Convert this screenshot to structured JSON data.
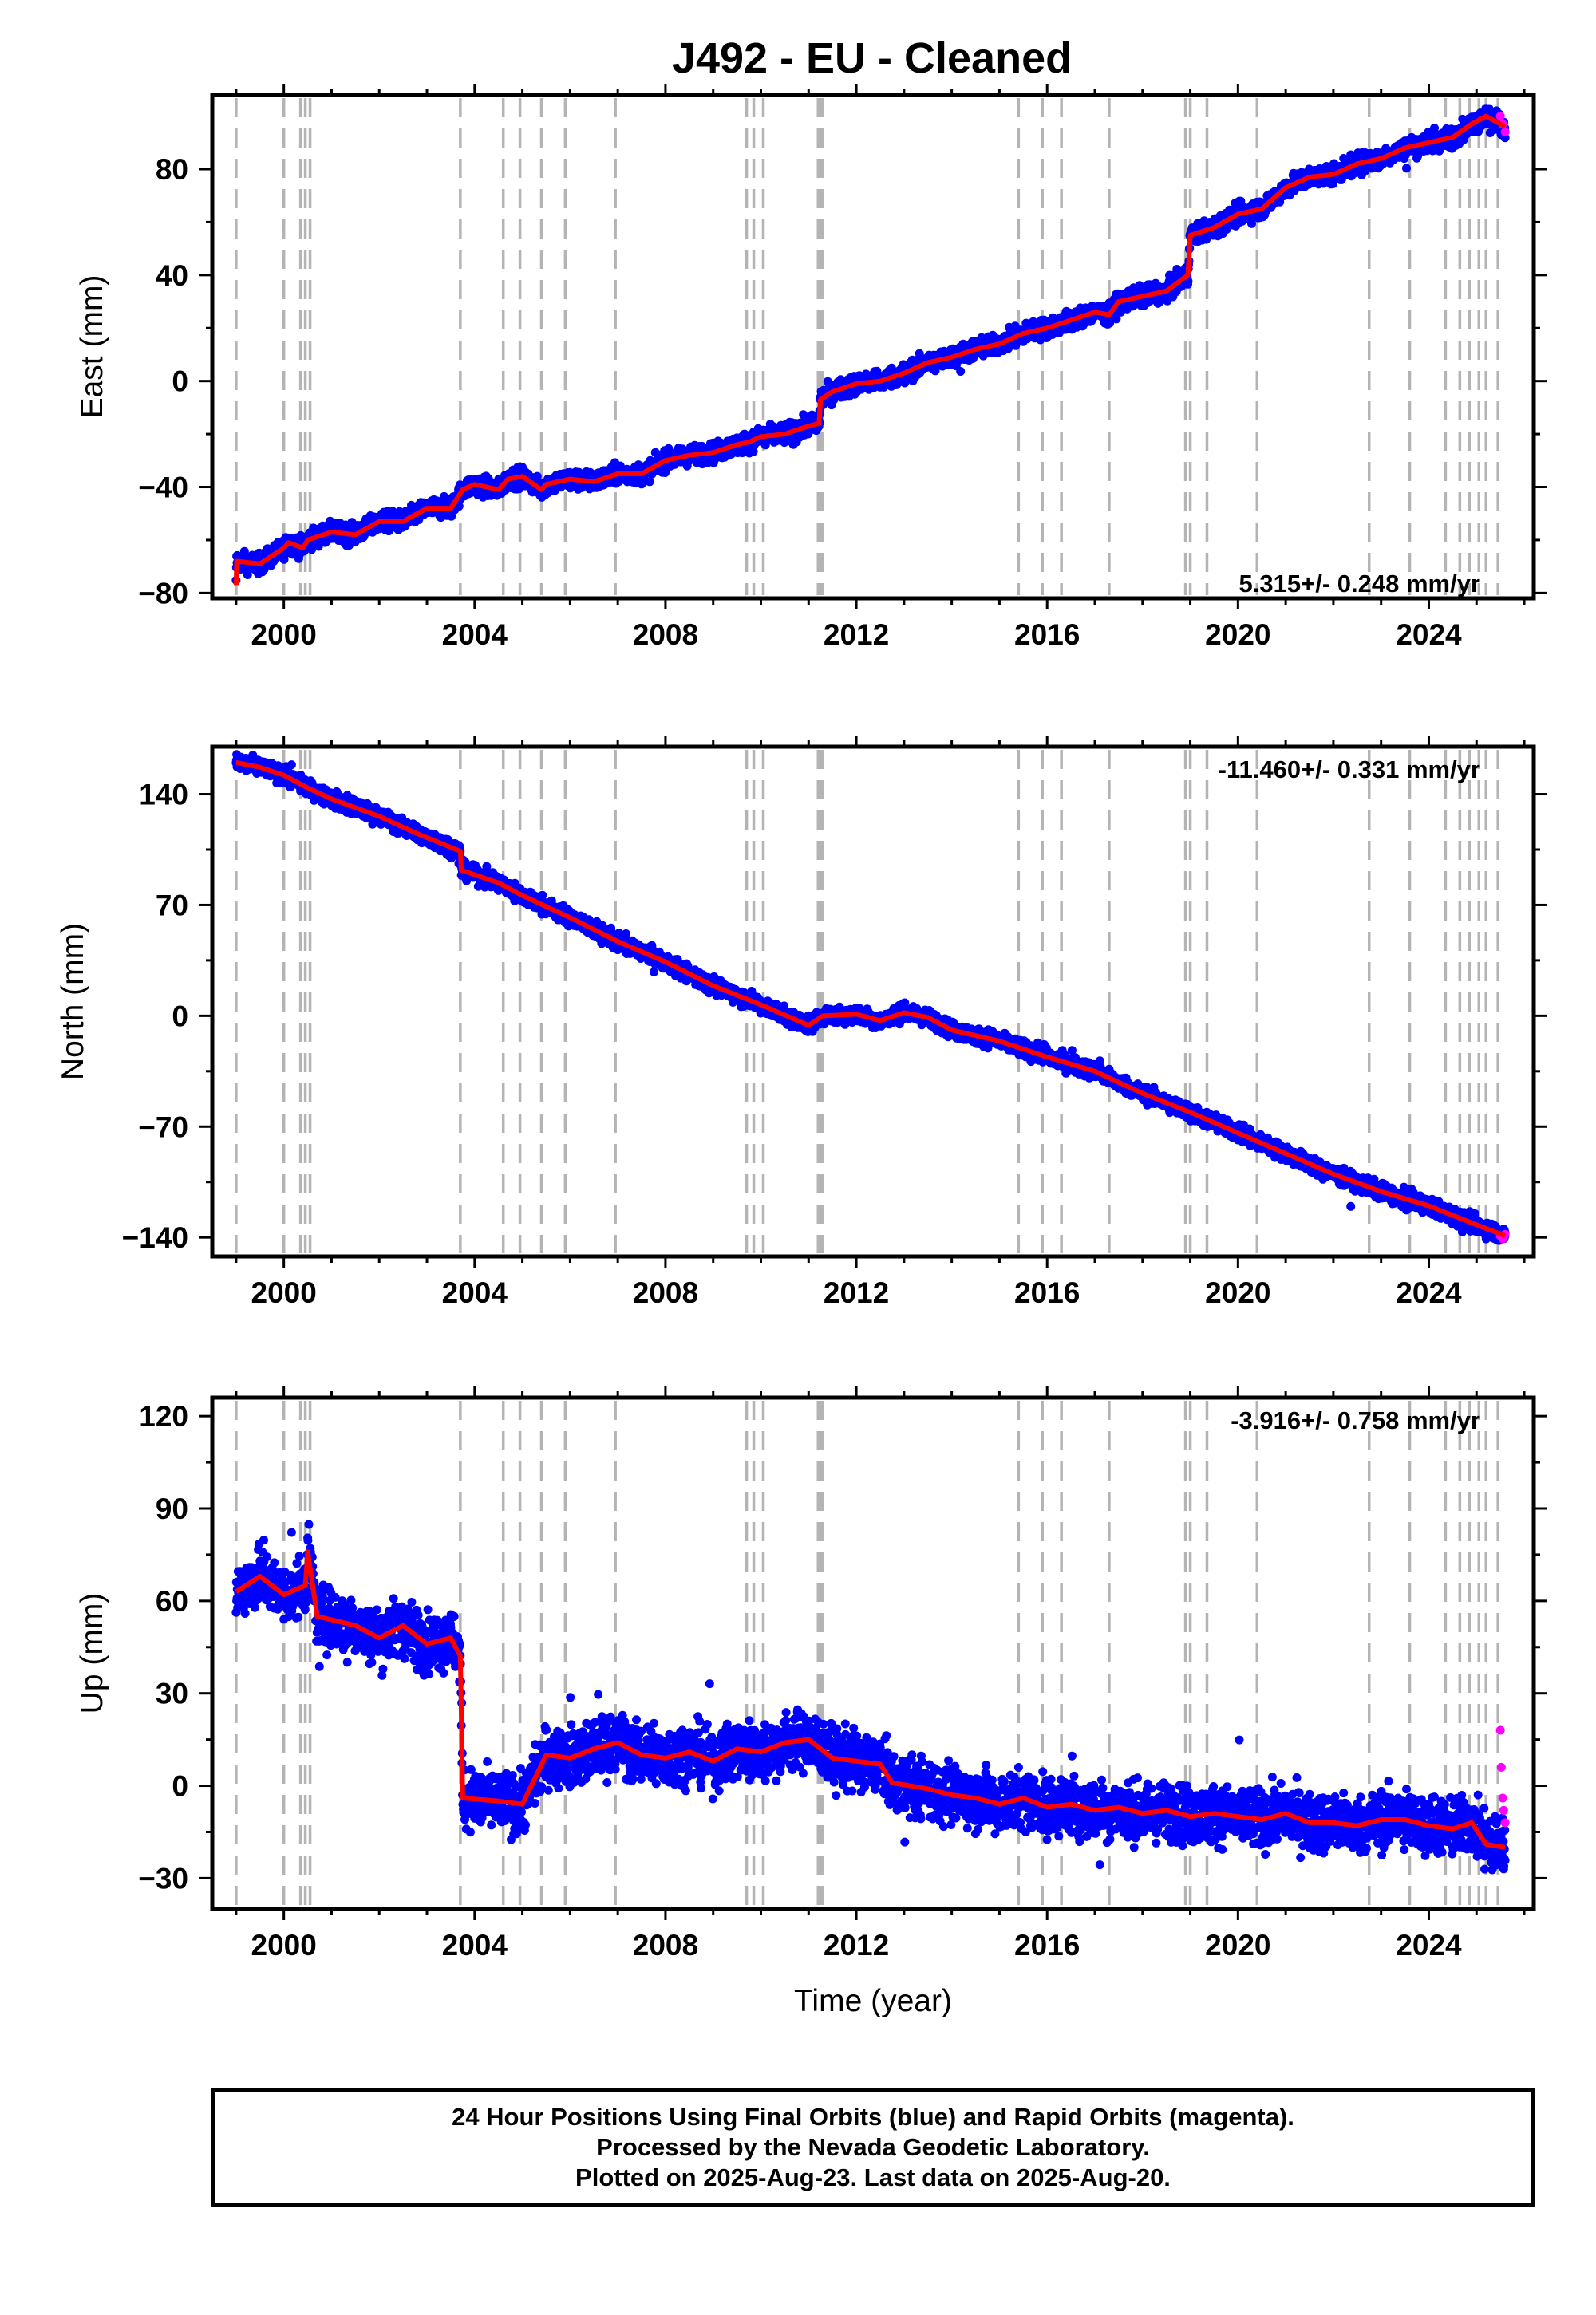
{
  "title": "J492  - EU - Cleaned",
  "footer": {
    "line1": "24 Hour Positions Using Final Orbits (blue) and Rapid Orbits (magenta).",
    "line2": "Processed by the Nevada Geodetic Laboratory.",
    "line3": "Plotted on 2025-Aug-23. Last data on 2025-Aug-20."
  },
  "colors": {
    "final": "#0000ff",
    "rapid": "#ff00ff",
    "model": "#ff0000",
    "event_lines": "#b4b4b4"
  },
  "chart_data": [
    {
      "type": "scatter",
      "panel": "east",
      "ylabel": "East (mm)",
      "xlabel": "",
      "xlim": [
        1998.5,
        2026.2
      ],
      "ylim": [
        -82,
        108
      ],
      "xticks": [
        2000,
        2004,
        2008,
        2012,
        2016,
        2020,
        2024
      ],
      "yticks": [
        -80,
        -40,
        0,
        40,
        80
      ],
      "rate_label": "5.315+/- 0.248 mm/yr",
      "model": {
        "x": [
          1999.0,
          1999.01,
          1999.5,
          2000.0,
          2000.1,
          2000.4,
          2000.5,
          2001.0,
          2001.5,
          2002.0,
          2002.5,
          2003.0,
          2003.5,
          2003.75,
          2004.0,
          2004.5,
          2004.7,
          2005.0,
          2005.4,
          2005.5,
          2006.0,
          2006.5,
          2007.0,
          2007.5,
          2008.0,
          2008.5,
          2009.0,
          2009.5,
          2009.75,
          2010.0,
          2010.5,
          2011.0,
          2011.22,
          2011.25,
          2011.5,
          2012.0,
          2012.5,
          2013.0,
          2013.5,
          2014.0,
          2014.5,
          2015.0,
          2015.5,
          2016.0,
          2016.5,
          2017.0,
          2017.3,
          2017.5,
          2018.0,
          2018.5,
          2018.95,
          2019.0,
          2019.5,
          2020.0,
          2020.5,
          2021.0,
          2021.5,
          2022.0,
          2022.5,
          2023.0,
          2023.5,
          2024.0,
          2024.5,
          2024.9,
          2025.2,
          2025.6
        ],
        "y": [
          -77,
          -68,
          -69,
          -63,
          -61,
          -63,
          -60,
          -57,
          -58,
          -53,
          -53,
          -48,
          -48,
          -41,
          -39,
          -41,
          -37,
          -36,
          -41,
          -39,
          -37,
          -38,
          -35,
          -35,
          -30,
          -28,
          -27,
          -24,
          -23,
          -21,
          -20,
          -17,
          -16,
          -7,
          -4,
          -1,
          0,
          3,
          7,
          9,
          12,
          14,
          18,
          20,
          23,
          26,
          25,
          30,
          32,
          34,
          40,
          55,
          58,
          63,
          65,
          73,
          77,
          78,
          82,
          84,
          88,
          90,
          92,
          97,
          100,
          96
        ]
      },
      "points": {
        "start": 1999.0,
        "end": 2025.6,
        "scatter_mm": 2.5,
        "rapid_x": [
          2025.5,
          2025.55,
          2025.6
        ],
        "rapid_y": [
          100,
          97,
          94
        ]
      }
    },
    {
      "type": "scatter",
      "panel": "north",
      "ylabel": "North (mm)",
      "xlabel": "",
      "xlim": [
        1998.5,
        2026.2
      ],
      "ylim": [
        -152,
        170
      ],
      "xticks": [
        2000,
        2004,
        2008,
        2012,
        2016,
        2020,
        2024
      ],
      "yticks": [
        -140,
        -70,
        0,
        70,
        140
      ],
      "yticklabels": [
        "−140",
        "−70",
        "0",
        "70",
        "140"
      ],
      "rate_label": "-11.460+/- 0.331 mm/yr",
      "model": {
        "x": [
          1999.0,
          1999.5,
          2000.0,
          2000.5,
          2001.0,
          2002.0,
          2002.8,
          2003.7,
          2003.72,
          2004.5,
          2005.0,
          2006.0,
          2007.0,
          2008.0,
          2009.0,
          2010.0,
          2011.0,
          2011.3,
          2012.0,
          2012.5,
          2013.0,
          2013.5,
          2014.0,
          2015.0,
          2016.0,
          2017.0,
          2018.0,
          2019.0,
          2020.0,
          2021.0,
          2022.0,
          2023.0,
          2024.0,
          2025.0,
          2025.6
        ],
        "y": [
          160,
          157,
          152,
          144,
          137,
          126,
          115,
          104,
          92,
          84,
          76,
          62,
          47,
          34,
          19,
          7,
          -6,
          0,
          1,
          -3,
          2,
          -1,
          -9,
          -16,
          -26,
          -35,
          -49,
          -61,
          -74,
          -87,
          -100,
          -111,
          -120,
          -132,
          -139
        ]
      },
      "points": {
        "start": 1999.0,
        "end": 2025.6,
        "scatter_mm": 3.5,
        "rapid_x": [
          2025.5,
          2025.55,
          2025.6
        ],
        "rapid_y": [
          -139,
          -141,
          -138
        ]
      }
    },
    {
      "type": "scatter",
      "panel": "up",
      "ylabel": "Up (mm)",
      "xlabel": "Time (year)",
      "xlim": [
        1998.5,
        2026.2
      ],
      "ylim": [
        -40,
        126
      ],
      "xticks": [
        2000,
        2004,
        2008,
        2012,
        2016,
        2020,
        2024
      ],
      "yticks": [
        -30,
        0,
        30,
        60,
        90,
        120
      ],
      "yticklabels": [
        "−30",
        "0",
        "30",
        "60",
        "90",
        "120"
      ],
      "rate_label": "-3.916+/- 0.758 mm/yr",
      "model": {
        "x": [
          1999.0,
          1999.5,
          2000.0,
          2000.45,
          2000.5,
          2000.7,
          2001.5,
          2002.0,
          2002.5,
          2003.0,
          2003.5,
          2003.7,
          2003.75,
          2004.5,
          2005.0,
          2005.5,
          2006.0,
          2006.5,
          2007.0,
          2007.5,
          2008.0,
          2008.5,
          2009.0,
          2009.5,
          2010.0,
          2010.5,
          2011.0,
          2011.5,
          2012.0,
          2012.5,
          2012.75,
          2013.5,
          2014.0,
          2014.5,
          2015.0,
          2015.5,
          2016.0,
          2016.5,
          2017.0,
          2017.5,
          2018.0,
          2018.5,
          2019.0,
          2019.5,
          2020.0,
          2020.5,
          2021.0,
          2021.5,
          2022.0,
          2022.5,
          2023.0,
          2023.5,
          2024.0,
          2024.5,
          2024.9,
          2025.2,
          2025.6
        ],
        "y": [
          63,
          68,
          62,
          65,
          76,
          55,
          52,
          48,
          52,
          46,
          48,
          42,
          -4,
          -5,
          -6,
          10,
          9,
          12,
          14,
          10,
          9,
          11,
          8,
          12,
          11,
          14,
          15,
          9,
          8,
          7,
          1,
          -1,
          -3,
          -4,
          -6,
          -4,
          -7,
          -6,
          -8,
          -7,
          -9,
          -8,
          -10,
          -9,
          -10,
          -11,
          -9,
          -12,
          -12,
          -13,
          -11,
          -11,
          -13,
          -14,
          -12,
          -19,
          -20
        ]
      },
      "points": {
        "start": 1999.0,
        "end": 2025.6,
        "scatter_mm": 6.5,
        "rapid_x": [
          2025.5,
          2025.52,
          2025.55,
          2025.57,
          2025.6
        ],
        "rapid_y": [
          18,
          6,
          -4,
          -8,
          -12
        ]
      }
    }
  ],
  "event_years": [
    1999.0,
    2000.0,
    2000.35,
    2000.45,
    2000.55,
    2003.7,
    2004.6,
    2004.95,
    2005.4,
    2005.9,
    2006.95,
    2009.7,
    2009.85,
    2010.05,
    2011.2,
    2011.25,
    2011.3,
    2015.4,
    2015.9,
    2016.3,
    2017.3,
    2018.9,
    2019.0,
    2019.35,
    2020.4,
    2022.75,
    2023.6,
    2024.35,
    2024.65,
    2024.85,
    2025.05,
    2025.2,
    2025.45
  ]
}
